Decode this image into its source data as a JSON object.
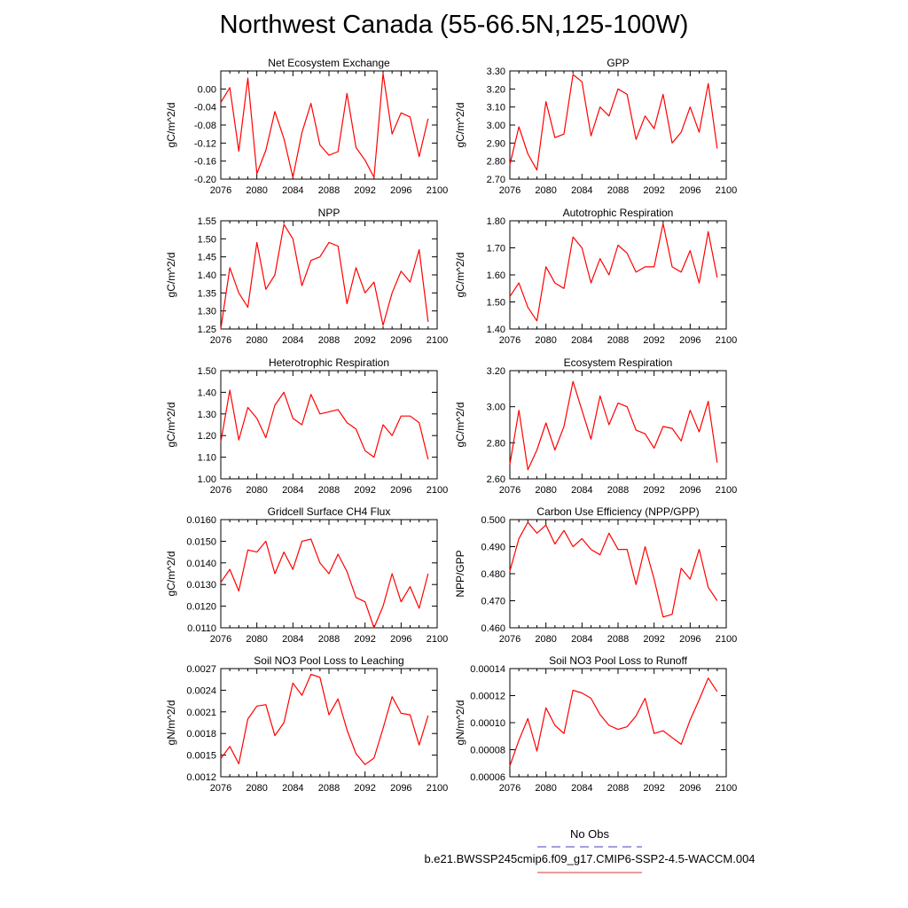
{
  "title": "Northwest Canada (55-66.5N,125-100W)",
  "legend": {
    "obs_label": "No Obs",
    "obs_color": "#6666cc",
    "model_label": "b.e21.BWSSP245cmip6.f09_g17.CMIP6-SSP2-4.5-WACCM.004",
    "model_color": "#e06060"
  },
  "chart_data": [
    {
      "type": "line",
      "title": "Net Ecosystem Exchange",
      "ylabel": "gC/m^2/d",
      "xlim": [
        2076,
        2100
      ],
      "xticks": [
        "2076",
        "2080",
        "2084",
        "2088",
        "2092",
        "2096",
        "2100"
      ],
      "ylim": [
        -0.2,
        0.04
      ],
      "yticks": [
        "0.00",
        "-0.04",
        "-0.08",
        "-0.12",
        "-0.16",
        "-0.20"
      ],
      "series": [
        {
          "color": "#ff0000",
          "x": [
            2076,
            2077,
            2078,
            2079,
            2080,
            2081,
            2082,
            2083,
            2084,
            2085,
            2086,
            2087,
            2088,
            2089,
            2090,
            2091,
            2092,
            2093,
            2094,
            2095,
            2096,
            2097,
            2098,
            2099
          ],
          "values": [
            -0.03,
            0.003,
            -0.138,
            0.024,
            -0.188,
            -0.136,
            -0.05,
            -0.11,
            -0.196,
            -0.097,
            -0.032,
            -0.124,
            -0.147,
            -0.139,
            -0.01,
            -0.13,
            -0.158,
            -0.196,
            0.034,
            -0.1,
            -0.053,
            -0.062,
            -0.15,
            -0.066
          ]
        }
      ]
    },
    {
      "type": "line",
      "title": "GPP",
      "ylabel": "gC/m^2/d",
      "xlim": [
        2076,
        2100
      ],
      "xticks": [
        "2076",
        "2080",
        "2084",
        "2088",
        "2092",
        "2096",
        "2100"
      ],
      "ylim": [
        2.7,
        3.3
      ],
      "yticks": [
        "3.30",
        "3.20",
        "3.10",
        "3.00",
        "2.90",
        "2.80",
        "2.70"
      ],
      "series": [
        {
          "color": "#ff0000",
          "x": [
            2076,
            2077,
            2078,
            2079,
            2080,
            2081,
            2082,
            2083,
            2084,
            2085,
            2086,
            2087,
            2088,
            2089,
            2090,
            2091,
            2092,
            2093,
            2094,
            2095,
            2096,
            2097,
            2098,
            2099
          ],
          "values": [
            2.78,
            2.99,
            2.84,
            2.75,
            3.13,
            2.93,
            2.95,
            3.28,
            3.24,
            2.94,
            3.1,
            3.05,
            3.2,
            3.17,
            2.92,
            3.05,
            2.98,
            3.17,
            2.9,
            2.96,
            3.1,
            2.96,
            3.23,
            2.87
          ]
        }
      ]
    },
    {
      "type": "line",
      "title": "NPP",
      "ylabel": "gC/m^2/d",
      "xlim": [
        2076,
        2100
      ],
      "xticks": [
        "2076",
        "2080",
        "2084",
        "2088",
        "2092",
        "2096",
        "2100"
      ],
      "ylim": [
        1.25,
        1.55
      ],
      "yticks": [
        "1.55",
        "1.50",
        "1.45",
        "1.40",
        "1.35",
        "1.30",
        "1.25"
      ],
      "series": [
        {
          "color": "#ff0000",
          "x": [
            2076,
            2077,
            2078,
            2079,
            2080,
            2081,
            2082,
            2083,
            2084,
            2085,
            2086,
            2087,
            2088,
            2089,
            2090,
            2091,
            2092,
            2093,
            2094,
            2095,
            2096,
            2097,
            2098,
            2099
          ],
          "values": [
            1.25,
            1.42,
            1.35,
            1.31,
            1.49,
            1.36,
            1.4,
            1.54,
            1.5,
            1.37,
            1.44,
            1.45,
            1.49,
            1.48,
            1.32,
            1.42,
            1.35,
            1.38,
            1.26,
            1.35,
            1.41,
            1.38,
            1.47,
            1.27
          ]
        }
      ]
    },
    {
      "type": "line",
      "title": "Autotrophic Respiration",
      "ylabel": "gC/m^2/d",
      "xlim": [
        2076,
        2100
      ],
      "xticks": [
        "2076",
        "2080",
        "2084",
        "2088",
        "2092",
        "2096",
        "2100"
      ],
      "ylim": [
        1.4,
        1.8
      ],
      "yticks": [
        "1.80",
        "1.70",
        "1.60",
        "1.50",
        "1.40"
      ],
      "series": [
        {
          "color": "#ff0000",
          "x": [
            2076,
            2077,
            2078,
            2079,
            2080,
            2081,
            2082,
            2083,
            2084,
            2085,
            2086,
            2087,
            2088,
            2089,
            2090,
            2091,
            2092,
            2093,
            2094,
            2095,
            2096,
            2097,
            2098,
            2099
          ],
          "values": [
            1.52,
            1.57,
            1.48,
            1.43,
            1.63,
            1.57,
            1.55,
            1.74,
            1.7,
            1.57,
            1.66,
            1.6,
            1.71,
            1.68,
            1.61,
            1.63,
            1.63,
            1.79,
            1.63,
            1.61,
            1.69,
            1.57,
            1.76,
            1.59
          ]
        }
      ]
    },
    {
      "type": "line",
      "title": "Heterotrophic Respiration",
      "ylabel": "gC/m^2/d",
      "xlim": [
        2076,
        2100
      ],
      "xticks": [
        "2076",
        "2080",
        "2084",
        "2088",
        "2092",
        "2096",
        "2100"
      ],
      "ylim": [
        1.0,
        1.5
      ],
      "yticks": [
        "1.50",
        "1.40",
        "1.30",
        "1.20",
        "1.10",
        "1.00"
      ],
      "series": [
        {
          "color": "#ff0000",
          "x": [
            2076,
            2077,
            2078,
            2079,
            2080,
            2081,
            2082,
            2083,
            2084,
            2085,
            2086,
            2087,
            2088,
            2089,
            2090,
            2091,
            2092,
            2093,
            2094,
            2095,
            2096,
            2097,
            2098,
            2099
          ],
          "values": [
            1.17,
            1.41,
            1.18,
            1.33,
            1.28,
            1.19,
            1.34,
            1.4,
            1.28,
            1.25,
            1.39,
            1.3,
            1.31,
            1.32,
            1.26,
            1.23,
            1.13,
            1.1,
            1.25,
            1.2,
            1.29,
            1.29,
            1.26,
            1.09
          ]
        }
      ]
    },
    {
      "type": "line",
      "title": "Ecosystem Respiration",
      "ylabel": "gC/m^2/d",
      "xlim": [
        2076,
        2100
      ],
      "xticks": [
        "2076",
        "2080",
        "2084",
        "2088",
        "2092",
        "2096",
        "2100"
      ],
      "ylim": [
        2.6,
        3.2
      ],
      "yticks": [
        "3.20",
        "3.00",
        "2.80",
        "2.60"
      ],
      "series": [
        {
          "color": "#ff0000",
          "x": [
            2076,
            2077,
            2078,
            2079,
            2080,
            2081,
            2082,
            2083,
            2084,
            2085,
            2086,
            2087,
            2088,
            2089,
            2090,
            2091,
            2092,
            2093,
            2094,
            2095,
            2096,
            2097,
            2098,
            2099
          ],
          "values": [
            2.68,
            2.98,
            2.65,
            2.76,
            2.91,
            2.76,
            2.89,
            3.14,
            2.98,
            2.82,
            3.06,
            2.9,
            3.02,
            3.0,
            2.87,
            2.85,
            2.77,
            2.89,
            2.88,
            2.81,
            2.98,
            2.86,
            3.03,
            2.69
          ]
        }
      ]
    },
    {
      "type": "line",
      "title": "Gridcell Surface CH4 Flux",
      "ylabel": "gC/m^2/d",
      "xlim": [
        2076,
        2100
      ],
      "xticks": [
        "2076",
        "2080",
        "2084",
        "2088",
        "2092",
        "2096",
        "2100"
      ],
      "ylim": [
        0.011,
        0.016
      ],
      "yticks": [
        "0.0160",
        "0.0150",
        "0.0140",
        "0.0130",
        "0.0120",
        "0.0110"
      ],
      "series": [
        {
          "color": "#ff0000",
          "x": [
            2076,
            2077,
            2078,
            2079,
            2080,
            2081,
            2082,
            2083,
            2084,
            2085,
            2086,
            2087,
            2088,
            2089,
            2090,
            2091,
            2092,
            2093,
            2094,
            2095,
            2096,
            2097,
            2098,
            2099
          ],
          "values": [
            0.0131,
            0.0137,
            0.0127,
            0.0146,
            0.0145,
            0.015,
            0.0135,
            0.0145,
            0.0137,
            0.015,
            0.0151,
            0.014,
            0.0135,
            0.0144,
            0.0136,
            0.0124,
            0.0122,
            0.011,
            0.012,
            0.0135,
            0.0122,
            0.0129,
            0.0119,
            0.0135
          ]
        }
      ]
    },
    {
      "type": "line",
      "title": "Carbon Use Efficiency (NPP/GPP)",
      "ylabel": "NPP/GPP",
      "xlim": [
        2076,
        2100
      ],
      "xticks": [
        "2076",
        "2080",
        "2084",
        "2088",
        "2092",
        "2096",
        "2100"
      ],
      "ylim": [
        0.46,
        0.5
      ],
      "yticks": [
        "0.500",
        "0.490",
        "0.480",
        "0.470",
        "0.460"
      ],
      "series": [
        {
          "color": "#ff0000",
          "x": [
            2076,
            2077,
            2078,
            2079,
            2080,
            2081,
            2082,
            2083,
            2084,
            2085,
            2086,
            2087,
            2088,
            2089,
            2090,
            2091,
            2092,
            2093,
            2094,
            2095,
            2096,
            2097,
            2098,
            2099
          ],
          "values": [
            0.481,
            0.493,
            0.499,
            0.495,
            0.498,
            0.491,
            0.496,
            0.49,
            0.493,
            0.489,
            0.487,
            0.495,
            0.489,
            0.489,
            0.476,
            0.49,
            0.478,
            0.464,
            0.465,
            0.482,
            0.478,
            0.489,
            0.475,
            0.47
          ]
        }
      ]
    },
    {
      "type": "line",
      "title": "Soil NO3 Pool Loss to Leaching",
      "ylabel": "gN/m^2/d",
      "xlim": [
        2076,
        2100
      ],
      "xticks": [
        "2076",
        "2080",
        "2084",
        "2088",
        "2092",
        "2096",
        "2100"
      ],
      "ylim": [
        0.0012,
        0.0027
      ],
      "yticks": [
        "0.0027",
        "0.0024",
        "0.0021",
        "0.0018",
        "0.0015",
        "0.0012"
      ],
      "series": [
        {
          "color": "#ff0000",
          "x": [
            2076,
            2077,
            2078,
            2079,
            2080,
            2081,
            2082,
            2083,
            2084,
            2085,
            2086,
            2087,
            2088,
            2089,
            2090,
            2091,
            2092,
            2093,
            2094,
            2095,
            2096,
            2097,
            2098,
            2099
          ],
          "values": [
            0.00145,
            0.00162,
            0.00138,
            0.002,
            0.00218,
            0.0022,
            0.00177,
            0.00195,
            0.0025,
            0.00233,
            0.00262,
            0.00258,
            0.00206,
            0.00228,
            0.00185,
            0.00152,
            0.00137,
            0.00146,
            0.00187,
            0.00231,
            0.00208,
            0.00206,
            0.00164,
            0.00205
          ]
        }
      ]
    },
    {
      "type": "line",
      "title": "Soil NO3 Pool Loss to Runoff",
      "ylabel": "gN/m^2/d",
      "xlim": [
        2076,
        2100
      ],
      "xticks": [
        "2076",
        "2080",
        "2084",
        "2088",
        "2092",
        "2096",
        "2100"
      ],
      "ylim": [
        6e-05,
        0.00014
      ],
      "yticks": [
        "0.00014",
        "0.00012",
        "0.00010",
        "0.00008",
        "0.00006"
      ],
      "series": [
        {
          "color": "#ff0000",
          "x": [
            2076,
            2077,
            2078,
            2079,
            2080,
            2081,
            2082,
            2083,
            2084,
            2085,
            2086,
            2087,
            2088,
            2089,
            2090,
            2091,
            2092,
            2093,
            2094,
            2095,
            2096,
            2097,
            2098,
            2099
          ],
          "values": [
            6.8e-05,
            8.7e-05,
            0.000103,
            7.9e-05,
            0.000111,
            9.8e-05,
            9.2e-05,
            0.000124,
            0.000122,
            0.000118,
            0.000106,
            9.8e-05,
            9.5e-05,
            9.7e-05,
            0.000105,
            0.000118,
            9.2e-05,
            9.4e-05,
            8.9e-05,
            8.4e-05,
            0.000102,
            0.000117,
            0.000133,
            0.000123
          ]
        }
      ]
    }
  ]
}
